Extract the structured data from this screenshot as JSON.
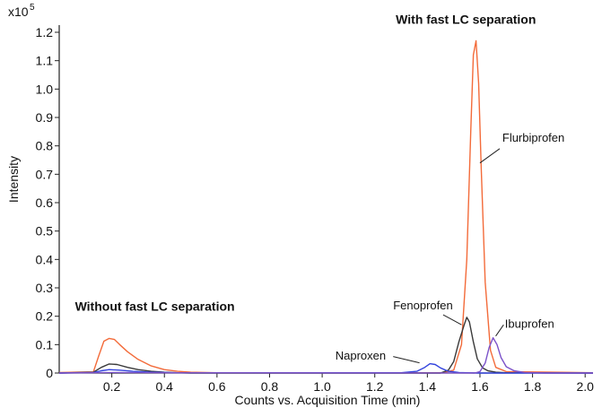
{
  "chart_data": {
    "type": "line",
    "xlabel": "Counts vs. Acquisition Time (min)",
    "ylabel": "Intensity",
    "y_multiplier_label": "x10",
    "y_multiplier_exp": "5",
    "xlim": [
      0.0,
      2.03
    ],
    "ylim": [
      0.0,
      1.2
    ],
    "x_ticks": [
      0.2,
      0.4,
      0.6,
      0.8,
      1.0,
      1.2,
      1.4,
      1.6,
      1.8,
      2.0
    ],
    "x_tick_labels": [
      "0.2",
      "0.4",
      "0.6",
      "0.8",
      "1.0",
      "1.2",
      "1.4",
      "1.6",
      "1.8",
      "2.0"
    ],
    "y_ticks": [
      0,
      0.1,
      0.2,
      0.3,
      0.4,
      0.5,
      0.6,
      0.7,
      0.8,
      0.9,
      1.0,
      1.1,
      1.2
    ],
    "y_tick_labels": [
      "0",
      "0.1",
      "0.2",
      "0.3",
      "0.4",
      "0.5",
      "0.6",
      "0.7",
      "0.8",
      "0.9",
      "1.0",
      "1.1",
      "1.2"
    ],
    "grid": false,
    "series": [
      {
        "color": "#f36b3a",
        "x": [
          0.0,
          0.13,
          0.15,
          0.17,
          0.19,
          0.21,
          0.23,
          0.26,
          0.3,
          0.35,
          0.4,
          0.45,
          0.5,
          0.6,
          1.46,
          1.5,
          1.53,
          1.55,
          1.565,
          1.575,
          1.585,
          1.595,
          1.605,
          1.62,
          1.64,
          1.66,
          1.7,
          2.03
        ],
        "y": [
          0.002,
          0.004,
          0.06,
          0.112,
          0.122,
          0.118,
          0.1,
          0.075,
          0.048,
          0.025,
          0.012,
          0.006,
          0.003,
          0.001,
          0.001,
          0.01,
          0.1,
          0.4,
          0.85,
          1.12,
          1.17,
          1.02,
          0.72,
          0.32,
          0.08,
          0.02,
          0.005,
          0.001
        ]
      },
      {
        "color": "#3a3a3a",
        "x": [
          0.0,
          0.13,
          0.16,
          0.19,
          0.22,
          0.26,
          0.3,
          0.35,
          0.4,
          0.45,
          0.5,
          1.45,
          1.48,
          1.5,
          1.52,
          1.54,
          1.55,
          1.56,
          1.575,
          1.59,
          1.61,
          1.63,
          1.66,
          1.7,
          2.03
        ],
        "y": [
          0.0,
          0.003,
          0.02,
          0.032,
          0.03,
          0.02,
          0.012,
          0.006,
          0.003,
          0.001,
          0.0,
          0.0,
          0.01,
          0.04,
          0.11,
          0.17,
          0.196,
          0.18,
          0.11,
          0.05,
          0.018,
          0.008,
          0.003,
          0.001,
          0.0
        ]
      },
      {
        "color": "#3344dd",
        "x": [
          0.0,
          0.13,
          0.16,
          0.19,
          0.23,
          0.28,
          0.35,
          0.45,
          1.3,
          1.36,
          1.39,
          1.41,
          1.43,
          1.45,
          1.48,
          1.52,
          1.55,
          1.6,
          2.03
        ],
        "y": [
          0.0,
          0.002,
          0.008,
          0.012,
          0.01,
          0.006,
          0.003,
          0.001,
          0.001,
          0.006,
          0.02,
          0.033,
          0.03,
          0.018,
          0.006,
          0.002,
          0.001,
          0.0,
          0.0
        ]
      },
      {
        "color": "#7b52c9",
        "x": [
          0.0,
          0.2,
          0.4,
          1.58,
          1.6,
          1.62,
          1.635,
          1.65,
          1.665,
          1.68,
          1.7,
          1.73,
          1.77,
          1.85,
          2.03
        ],
        "y": [
          0.0,
          0.002,
          0.001,
          0.0,
          0.005,
          0.035,
          0.09,
          0.124,
          0.1,
          0.055,
          0.022,
          0.008,
          0.002,
          0.0,
          0.0
        ]
      }
    ],
    "annotations": [
      {
        "text": "With fast LC separation",
        "x": 1.28,
        "y": 1.23,
        "style": "bold"
      },
      {
        "text": "Without fast LC separation",
        "x": 0.06,
        "y": 0.22,
        "style": "bold"
      },
      {
        "text": "Flurbiprofen",
        "x": 1.685,
        "y": 0.815,
        "style": "normal",
        "line": [
          1.675,
          0.79,
          1.6,
          0.74
        ]
      },
      {
        "text": "Fenoprofen",
        "x": 1.27,
        "y": 0.225,
        "style": "normal",
        "line": [
          1.46,
          0.205,
          1.53,
          0.17
        ]
      },
      {
        "text": "Naproxen",
        "x": 1.05,
        "y": 0.048,
        "style": "normal",
        "line": [
          1.27,
          0.058,
          1.37,
          0.036
        ]
      },
      {
        "text": "Ibuprofen",
        "x": 1.695,
        "y": 0.16,
        "style": "normal",
        "line": [
          1.69,
          0.17,
          1.66,
          0.13
        ]
      }
    ]
  }
}
